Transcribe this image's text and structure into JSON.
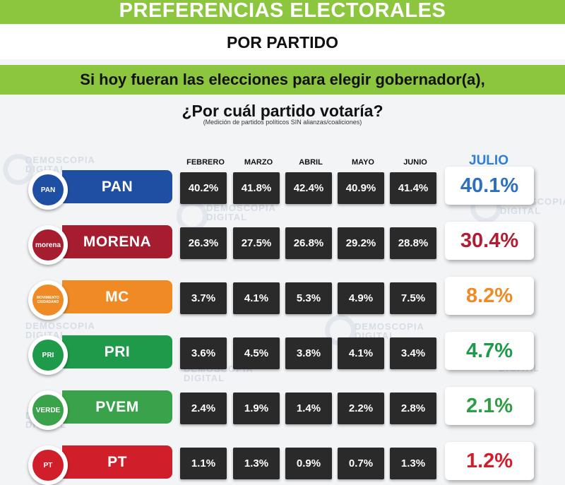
{
  "header": {
    "title": "PREFERENCIAS ELECTORALES",
    "subtitle": "POR PARTIDO",
    "question_line1": "Si hoy fueran las elecciones para elegir gobernador(a),",
    "question_line2": "¿Por cuál partido votaría?",
    "note": "(Medición de partidos políticos SIN alianzas/coaliciones)"
  },
  "watermark": {
    "line1": "DEMOSCOPIA",
    "line2": "DIGITAL"
  },
  "columns": [
    "FEBRERO",
    "MARZO",
    "ABRIL",
    "MAYO",
    "JUNIO"
  ],
  "current_label": "JULIO",
  "parties": [
    {
      "name": "PAN",
      "logo_text": "PAN",
      "color": "#1f4fa3",
      "months": [
        "40.2%",
        "41.8%",
        "42.4%",
        "40.9%",
        "41.4%"
      ],
      "current": "40.1%",
      "current_color": "#2e6fc0"
    },
    {
      "name": "MORENA",
      "logo_text": "morena",
      "color": "#a61d2f",
      "months": [
        "26.3%",
        "27.5%",
        "26.8%",
        "29.2%",
        "28.8%"
      ],
      "current": "30.4%",
      "current_color": "#b01e34"
    },
    {
      "name": "MC",
      "logo_text": "MOVIMIENTO CIUDADANO",
      "color": "#f08a24",
      "months": [
        "3.7%",
        "4.1%",
        "5.3%",
        "4.9%",
        "7.5%"
      ],
      "current": "8.2%",
      "current_color": "#f08a24"
    },
    {
      "name": "PRI",
      "logo_text": "PRI",
      "color": "#1f9a4a",
      "months": [
        "3.6%",
        "4.5%",
        "3.8%",
        "4.1%",
        "3.4%"
      ],
      "current": "4.7%",
      "current_color": "#1f9a4a"
    },
    {
      "name": "PVEM",
      "logo_text": "VERDE",
      "color": "#3aa24a",
      "months": [
        "2.4%",
        "1.9%",
        "1.4%",
        "2.2%",
        "2.8%"
      ],
      "current": "2.1%",
      "current_color": "#2e9e45"
    },
    {
      "name": "PT",
      "logo_text": "PT",
      "color": "#d01f2a",
      "months": [
        "1.1%",
        "1.3%",
        "0.9%",
        "0.7%",
        "1.3%"
      ],
      "current": "1.2%",
      "current_color": "#d01f2a"
    }
  ],
  "chart_data": {
    "type": "table",
    "title": "PREFERENCIAS ELECTORALES",
    "subtitle": "POR PARTIDO",
    "columns": [
      "FEBRERO",
      "MARZO",
      "ABRIL",
      "MAYO",
      "JUNIO",
      "JULIO"
    ],
    "rows": [
      "PAN",
      "MORENA",
      "MC",
      "PRI",
      "PVEM",
      "PT"
    ],
    "unit": "%",
    "series": [
      {
        "name": "FEBRERO",
        "values": [
          40.2,
          26.3,
          3.7,
          3.6,
          2.4,
          1.1
        ]
      },
      {
        "name": "MARZO",
        "values": [
          41.8,
          27.5,
          4.1,
          4.5,
          1.9,
          1.3
        ]
      },
      {
        "name": "ABRIL",
        "values": [
          42.4,
          26.8,
          5.3,
          3.8,
          1.4,
          0.9
        ]
      },
      {
        "name": "MAYO",
        "values": [
          40.9,
          29.2,
          4.9,
          4.1,
          2.2,
          0.7
        ]
      },
      {
        "name": "JUNIO",
        "values": [
          41.4,
          28.8,
          7.5,
          3.4,
          2.8,
          1.3
        ]
      },
      {
        "name": "JULIO",
        "values": [
          40.1,
          30.4,
          8.2,
          4.7,
          2.1,
          1.2
        ]
      }
    ]
  }
}
